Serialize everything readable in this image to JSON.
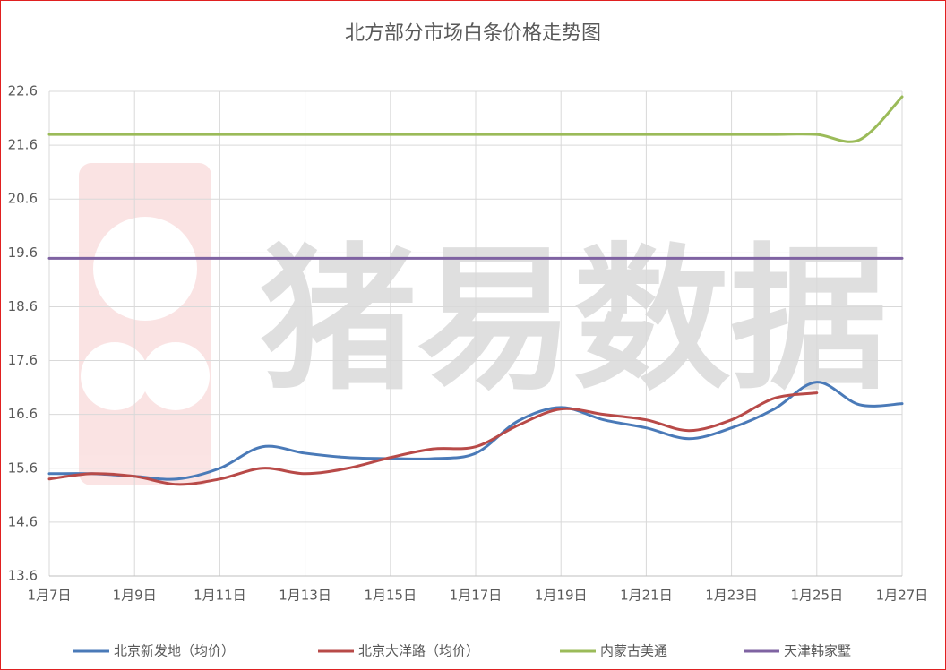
{
  "chart_data": {
    "type": "line",
    "title": "北方部分市场白条价格走势图",
    "watermark": "猪易数据",
    "categories": [
      "1月7日",
      null,
      "1月9日",
      null,
      "1月11日",
      null,
      "1月13日",
      null,
      "1月15日",
      null,
      "1月17日",
      null,
      "1月19日",
      null,
      "1月21日",
      null,
      "1月23日",
      null,
      "1月25日",
      null,
      "1月27日"
    ],
    "series": [
      {
        "name": "北京新发地（均价）",
        "color": "#4a7ab8",
        "values": [
          15.5,
          15.5,
          15.45,
          15.4,
          15.6,
          16.0,
          15.88,
          15.8,
          15.78,
          15.78,
          15.88,
          16.48,
          16.73,
          16.5,
          16.35,
          16.15,
          16.35,
          16.7,
          17.2,
          16.78,
          16.8
        ]
      },
      {
        "name": "北京大洋路（均价）",
        "color": "#b84a48",
        "values": [
          15.4,
          15.5,
          15.45,
          15.3,
          15.4,
          15.6,
          15.5,
          15.6,
          15.8,
          15.96,
          16.0,
          16.4,
          16.7,
          16.6,
          16.5,
          16.3,
          16.5,
          16.9,
          17.0,
          null,
          null
        ]
      },
      {
        "name": "内蒙古美通",
        "color": "#9bbb59",
        "values": [
          21.8,
          21.8,
          21.8,
          21.8,
          21.8,
          21.8,
          21.8,
          21.8,
          21.8,
          21.8,
          21.8,
          21.8,
          21.8,
          21.8,
          21.8,
          21.8,
          21.8,
          21.8,
          21.8,
          21.7,
          22.5
        ]
      },
      {
        "name": "天津韩家墅",
        "color": "#7f63a2",
        "values": [
          19.5,
          19.5,
          19.5,
          19.5,
          19.5,
          19.5,
          19.5,
          19.5,
          19.5,
          19.5,
          19.5,
          19.5,
          19.5,
          19.5,
          19.5,
          19.5,
          19.5,
          19.5,
          19.5,
          19.5,
          19.5
        ]
      }
    ],
    "ylim": [
      13.6,
      22.6
    ],
    "yticks": [
      13.6,
      14.6,
      15.6,
      16.6,
      17.6,
      18.6,
      19.6,
      20.6,
      21.6,
      22.6
    ],
    "grid": true,
    "legend": "bottom"
  }
}
